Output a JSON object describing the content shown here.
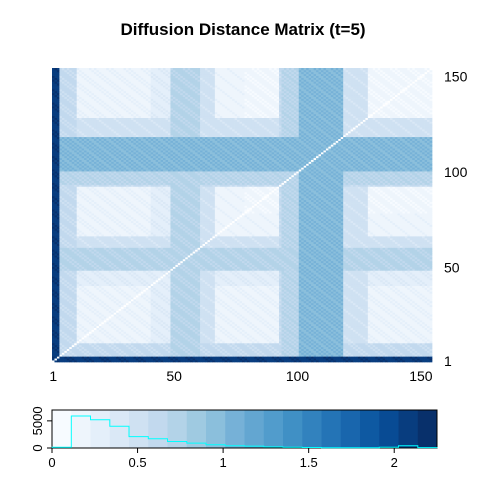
{
  "chart_data": {
    "type": "heatmap",
    "title": "Diffusion Distance Matrix (t=5)",
    "n": 154,
    "x_tick_labels": [
      "1",
      "50",
      "100",
      "150"
    ],
    "x_tick_values": [
      1,
      50,
      100,
      150
    ],
    "y_tick_labels": [
      "1",
      "50",
      "100",
      "150"
    ],
    "y_tick_values": [
      1,
      50,
      100,
      150
    ],
    "diagonal_value": 0,
    "band_profile": [
      {
        "from": 1,
        "to": 3,
        "value": 2.1
      },
      {
        "from": 4,
        "to": 10,
        "value": 0.6
      },
      {
        "from": 11,
        "to": 40,
        "value": 0.2
      },
      {
        "from": 41,
        "to": 48,
        "value": 0.3
      },
      {
        "from": 49,
        "to": 60,
        "value": 0.7
      },
      {
        "from": 61,
        "to": 66,
        "value": 0.5
      },
      {
        "from": 67,
        "to": 92,
        "value": 0.15
      },
      {
        "from": 93,
        "to": 100,
        "value": 0.6
      },
      {
        "from": 101,
        "to": 118,
        "value": 1.0
      },
      {
        "from": 119,
        "to": 128,
        "value": 0.5
      },
      {
        "from": 129,
        "to": 154,
        "value": 0.15
      }
    ],
    "row_profile": [
      {
        "from": 1,
        "to": 6,
        "value": 0.6
      },
      {
        "from": 7,
        "to": 40,
        "value": 0.15
      },
      {
        "from": 41,
        "to": 48,
        "value": 0.25
      },
      {
        "from": 49,
        "to": 60,
        "value": 0.55
      },
      {
        "from": 61,
        "to": 78,
        "value": 0.2
      },
      {
        "from": 79,
        "to": 93,
        "value": 0.15
      },
      {
        "from": 94,
        "to": 108,
        "value": 0.75
      },
      {
        "from": 109,
        "to": 116,
        "value": 0.6
      },
      {
        "from": 117,
        "to": 154,
        "value": 0.15
      }
    ],
    "color_scale": {
      "min": 0,
      "max": 2.25,
      "colors": [
        "#f7fbff",
        "#eef5fc",
        "#e4effa",
        "#dae8f6",
        "#cfe1f2",
        "#c2d9ee",
        "#b3d3e8",
        "#9fcae1",
        "#8bbfdc",
        "#76b1d7",
        "#63a6d1",
        "#519ccc",
        "#4090c5",
        "#3282be",
        "#2474b6",
        "#1966ad",
        "#0e59a2",
        "#084b94",
        "#083d7f",
        "#08306b"
      ]
    },
    "legend": {
      "type": "histogram",
      "x_ticks": [
        0,
        0.5,
        1,
        1.5,
        2
      ],
      "x_tick_labels": [
        "0",
        "0.5",
        "1",
        "1.5",
        "2"
      ],
      "y_ticks": [
        0,
        5000
      ],
      "y_tick_labels": [
        "0",
        "5000"
      ],
      "y_max": 7000,
      "bins": [
        0,
        0.1125,
        0.225,
        0.3375,
        0.45,
        0.5625,
        0.675,
        0.7875,
        0.9,
        1.0125,
        1.125,
        1.2375,
        1.35,
        1.4625,
        1.575,
        1.6875,
        1.8,
        1.9125,
        2.025,
        2.1375,
        2.25
      ],
      "counts": [
        150,
        5900,
        5200,
        4000,
        2100,
        1700,
        1200,
        900,
        600,
        400,
        350,
        200,
        150,
        100,
        60,
        50,
        30,
        150,
        400,
        80
      ],
      "histogram_color": "#00ffff"
    }
  }
}
